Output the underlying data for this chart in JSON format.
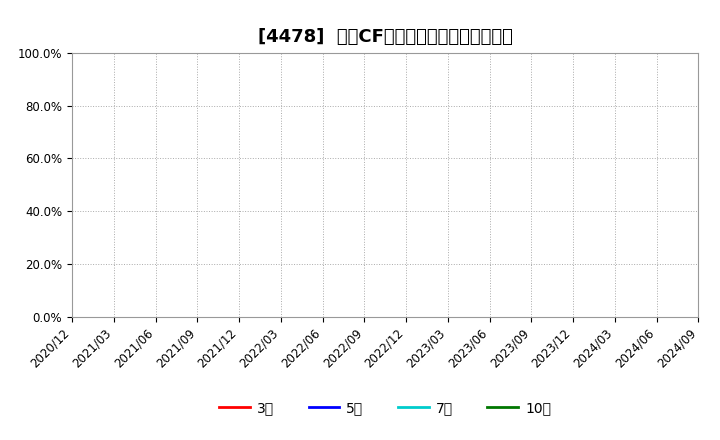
{
  "title": "[4478]  営業CFマージンの標準偏差の推移",
  "title_fontsize": 13,
  "ylim": [
    0.0,
    1.0
  ],
  "yticks": [
    0.0,
    0.2,
    0.4,
    0.6,
    0.8,
    1.0
  ],
  "ytick_labels": [
    "0.0%",
    "20.0%",
    "40.0%",
    "60.0%",
    "80.0%",
    "100.0%"
  ],
  "xtick_labels": [
    "2020/12",
    "2021/03",
    "2021/06",
    "2021/09",
    "2021/12",
    "2022/03",
    "2022/06",
    "2022/09",
    "2022/12",
    "2023/03",
    "2023/06",
    "2023/09",
    "2023/12",
    "2024/03",
    "2024/06",
    "2024/09"
  ],
  "background_color": "#ffffff",
  "plot_bg_color": "#ffffff",
  "grid_color": "#aaaaaa",
  "legend_entries": [
    {
      "label": "3年",
      "color": "#ff0000"
    },
    {
      "label": "5年",
      "color": "#0000ff"
    },
    {
      "label": "7年",
      "color": "#00cccc"
    },
    {
      "label": "10年",
      "color": "#007700"
    }
  ],
  "legend_fontsize": 10,
  "tick_fontsize": 8.5
}
